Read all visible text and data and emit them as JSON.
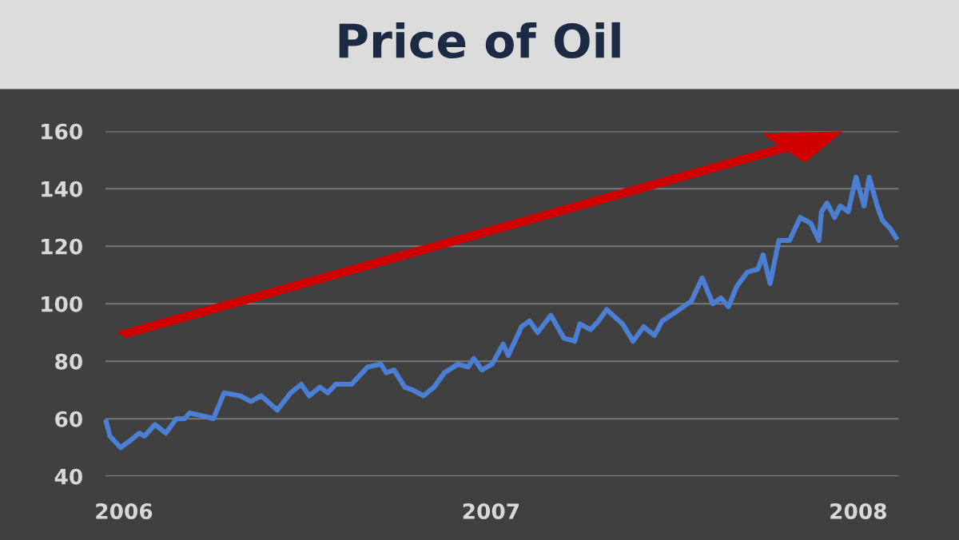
{
  "chart_data": {
    "type": "line",
    "title": "Price of Oil",
    "x": [
      2005.952,
      2005.962,
      2005.991,
      2006.013,
      2006.042,
      2006.056,
      2006.085,
      2006.114,
      2006.143,
      2006.165,
      2006.179,
      2006.216,
      2006.244,
      2006.273,
      2006.317,
      2006.346,
      2006.374,
      2006.418,
      2006.454,
      2006.483,
      2006.505,
      2006.534,
      2006.555,
      2006.577,
      2006.62,
      2006.664,
      2006.7,
      2006.715,
      2006.736,
      2006.765,
      2006.787,
      2006.816,
      2006.845,
      2006.873,
      2006.91,
      2006.938,
      2006.953,
      2006.975,
      2007.003,
      2007.033,
      2007.047,
      2007.083,
      2007.105,
      2007.127,
      2007.163,
      2007.199,
      2007.228,
      2007.242,
      2007.271,
      2007.293,
      2007.315,
      2007.358,
      2007.387,
      2007.416,
      2007.445,
      2007.466,
      2007.502,
      2007.546,
      2007.575,
      2007.604,
      2007.626,
      2007.647,
      2007.669,
      2007.698,
      2007.727,
      2007.741,
      2007.76,
      2007.784,
      2007.813,
      2007.842,
      2007.871,
      2007.893,
      2007.9,
      2007.915,
      2007.936,
      2007.951,
      2007.973,
      2007.994,
      2008.016,
      2008.03,
      2008.052,
      2008.066,
      2008.088,
      2008.103
    ],
    "series": [
      {
        "color": "#4a7fd4",
        "values": [
          59,
          54,
          50,
          52,
          55,
          54,
          58,
          55,
          60,
          60,
          62,
          61,
          60,
          69,
          68,
          66,
          68,
          63,
          69,
          72,
          68,
          71,
          69,
          72,
          72,
          78,
          79,
          76,
          77,
          71,
          70,
          68,
          71,
          76,
          79,
          78,
          81,
          77,
          79,
          86,
          82,
          92,
          94,
          90,
          96,
          88,
          87,
          93,
          91,
          94,
          98,
          93,
          87,
          92,
          89,
          94,
          97,
          101,
          109,
          100,
          102,
          99,
          106,
          111,
          112,
          117,
          107,
          122,
          122,
          130,
          128,
          122,
          132,
          135,
          130,
          134,
          132,
          144,
          134,
          144,
          134,
          129,
          126,
          123
        ]
      }
    ],
    "xlim": [
      2005.95,
      2008.11
    ],
    "ylim": [
      40,
      160
    ],
    "xticks": [
      2006,
      2007,
      2008
    ],
    "yticks": [
      40,
      60,
      80,
      100,
      120,
      140,
      160
    ],
    "grid": "y",
    "line_style": "solid",
    "marker": "none"
  }
}
